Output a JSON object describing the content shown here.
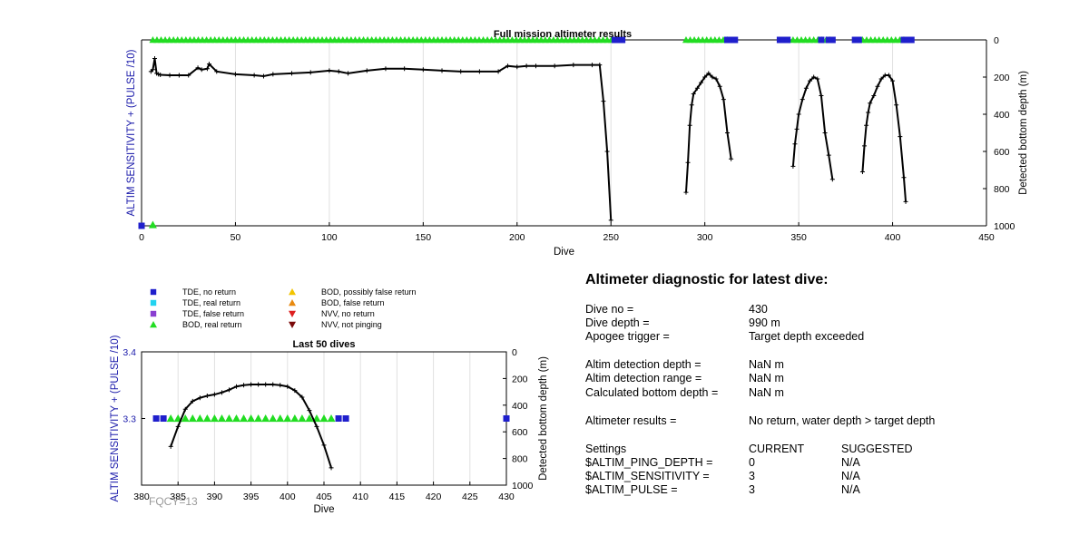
{
  "chart_data": [
    {
      "type": "line",
      "title": "Full mission altimeter results",
      "xlabel": "Dive",
      "ylabel_left": "ALTIM SENSITIVITY + (PULSE /10)",
      "ylabel_right": "Detected bottom depth (m)",
      "xlim": [
        0,
        450
      ],
      "ylim_right": [
        0,
        1000
      ],
      "x_ticks": [
        "0",
        "50",
        "100",
        "150",
        "200",
        "250",
        "300",
        "350",
        "400",
        "450"
      ],
      "y_ticks_right": [
        "0",
        "200",
        "400",
        "600",
        "800",
        "1000"
      ],
      "grid": true,
      "series": [
        {
          "name": "Detected bottom depth",
          "segments": [
            {
              "x": [
                5,
                6,
                7,
                8,
                9,
                10,
                15,
                20,
                25,
                30,
                32,
                35,
                36,
                40,
                50,
                60,
                65,
                70,
                80,
                90,
                100,
                105,
                110,
                120,
                130,
                140,
                150,
                160,
                170,
                180,
                190,
                195,
                200,
                205,
                210,
                220,
                230,
                240,
                244,
                246,
                248,
                250
              ],
              "y": [
                170,
                160,
                100,
                180,
                185,
                188,
                190,
                190,
                190,
                150,
                160,
                155,
                130,
                170,
                185,
                190,
                195,
                185,
                180,
                175,
                165,
                170,
                180,
                165,
                155,
                155,
                160,
                165,
                170,
                170,
                170,
                140,
                145,
                140,
                140,
                140,
                135,
                135,
                135,
                330,
                600,
                970
              ]
            },
            {
              "x": [
                290,
                291,
                292,
                293,
                294,
                296,
                298,
                300,
                302,
                304,
                306,
                308,
                310,
                312,
                314
              ],
              "y": [
                820,
                660,
                460,
                350,
                290,
                260,
                230,
                200,
                180,
                200,
                210,
                250,
                320,
                500,
                640
              ]
            },
            {
              "x": [
                347,
                348,
                349,
                350,
                352,
                354,
                356,
                358,
                360,
                362,
                364,
                366,
                368
              ],
              "y": [
                680,
                560,
                480,
                400,
                320,
                260,
                220,
                200,
                210,
                300,
                500,
                620,
                750
              ]
            },
            {
              "x": [
                384,
                385,
                386,
                387,
                388,
                390,
                392,
                394,
                396,
                398,
                400,
                402,
                404,
                406,
                407
              ],
              "y": [
                710,
                570,
                460,
                390,
                340,
                300,
                250,
                210,
                190,
                190,
                220,
                350,
                520,
                740,
                870
              ]
            }
          ]
        },
        {
          "name": "BOD, real return",
          "markers": "triangle",
          "x_ranges": [
            [
              6,
              251
            ],
            [
              290,
              314
            ],
            [
              347,
              368
            ],
            [
              384,
              406
            ]
          ],
          "y_level": 0
        },
        {
          "name": "TDE, no return",
          "markers": "square",
          "x": [
            0,
            252,
            254,
            256,
            312,
            314,
            316,
            340,
            342,
            344,
            362,
            366,
            368,
            380,
            382,
            406,
            408,
            410
          ],
          "y_level": 0
        }
      ]
    },
    {
      "type": "line",
      "title": "Last 50 dives",
      "xlabel": "Dive",
      "ylabel_left": "ALTIM SENSITIVITY + (PULSE /10)",
      "ylabel_right": "Detected bottom depth (m)",
      "xlim": [
        380,
        430
      ],
      "ylim_left": [
        3.2,
        3.4
      ],
      "ylim_right": [
        0,
        1000
      ],
      "x_ticks": [
        "380",
        "385",
        "390",
        "395",
        "400",
        "405",
        "410",
        "415",
        "420",
        "425",
        "430"
      ],
      "y_ticks_left": [
        "3.3",
        "3.4"
      ],
      "y_ticks_right": [
        "0",
        "200",
        "400",
        "600",
        "800",
        "1000"
      ],
      "grid": true,
      "series": [
        {
          "name": "Detected bottom depth",
          "x": [
            384,
            385,
            386,
            387,
            388,
            389,
            390,
            391,
            392,
            393,
            394,
            395,
            396,
            397,
            398,
            399,
            400,
            401,
            402,
            403,
            404,
            405,
            406
          ],
          "y": [
            710,
            560,
            430,
            370,
            345,
            330,
            320,
            305,
            285,
            260,
            250,
            245,
            245,
            245,
            245,
            250,
            260,
            290,
            340,
            440,
            560,
            700,
            870
          ]
        },
        {
          "name": "BOD, real return",
          "markers": "triangle",
          "x": [
            384,
            385,
            386,
            387,
            388,
            389,
            390,
            391,
            392,
            393,
            394,
            395,
            396,
            397,
            398,
            399,
            400,
            401,
            402,
            403,
            404,
            405,
            406
          ],
          "y": [
            3.3,
            3.3,
            3.3,
            3.3,
            3.3,
            3.3,
            3.3,
            3.3,
            3.3,
            3.3,
            3.3,
            3.3,
            3.3,
            3.3,
            3.3,
            3.3,
            3.3,
            3.3,
            3.3,
            3.3,
            3.3,
            3.3,
            3.3
          ]
        },
        {
          "name": "TDE, no return",
          "markers": "square",
          "x": [
            382,
            383,
            407,
            408,
            430
          ],
          "y": [
            3.3,
            3.3,
            3.3,
            3.3,
            3.3
          ]
        }
      ]
    }
  ],
  "legend": {
    "items": [
      {
        "label": "TDE, no return",
        "color": "#1f1fcc",
        "shape": "square"
      },
      {
        "label": "TDE, real return",
        "color": "#22d3f0",
        "shape": "square"
      },
      {
        "label": "TDE, false return",
        "color": "#8a3fd1",
        "shape": "square"
      },
      {
        "label": "BOD, real return",
        "color": "#22dd22",
        "shape": "triangle-up"
      },
      {
        "label": "BOD, possibly false return",
        "color": "#f2c400",
        "shape": "triangle-up"
      },
      {
        "label": "BOD, false return",
        "color": "#e88a10",
        "shape": "triangle-up"
      },
      {
        "label": "NVV, no return",
        "color": "#dd2020",
        "shape": "triangle-down"
      },
      {
        "label": "NVV, not pinging",
        "color": "#7a0a0a",
        "shape": "triangle-down"
      }
    ]
  },
  "fqcy_label": "FQCY=13",
  "colors": {
    "axis_blue": "#1a1aaa",
    "tde_no_return": "#1f1fcc",
    "bod_real_return": "#22dd22",
    "depth_line": "#000000",
    "grid": "#e0e0e0"
  },
  "diagnostic": {
    "title": "Altimeter diagnostic for latest dive:",
    "rows": [
      {
        "label": "Dive no =",
        "value": "430"
      },
      {
        "label": "Dive depth =",
        "value": "990 m"
      },
      {
        "label": "Apogee trigger =",
        "value": "Target depth exceeded"
      },
      {
        "label": "Altim detection depth =",
        "value": "NaN m"
      },
      {
        "label": "Altim detection range =",
        "value": "NaN m"
      },
      {
        "label": "Calculated bottom depth =",
        "value": "NaN m"
      },
      {
        "label": "Altimeter results =",
        "value": "No return, water depth > target depth"
      }
    ],
    "settings_header": {
      "label": "Settings",
      "current": "CURRENT",
      "suggested": "SUGGESTED"
    },
    "settings": [
      {
        "label": "$ALTIM_PING_DEPTH =",
        "current": "0",
        "suggested": "N/A"
      },
      {
        "label": "$ALTIM_SENSITIVITY =",
        "current": "3",
        "suggested": "N/A"
      },
      {
        "label": "$ALTIM_PULSE =",
        "current": "3",
        "suggested": "N/A"
      }
    ]
  }
}
